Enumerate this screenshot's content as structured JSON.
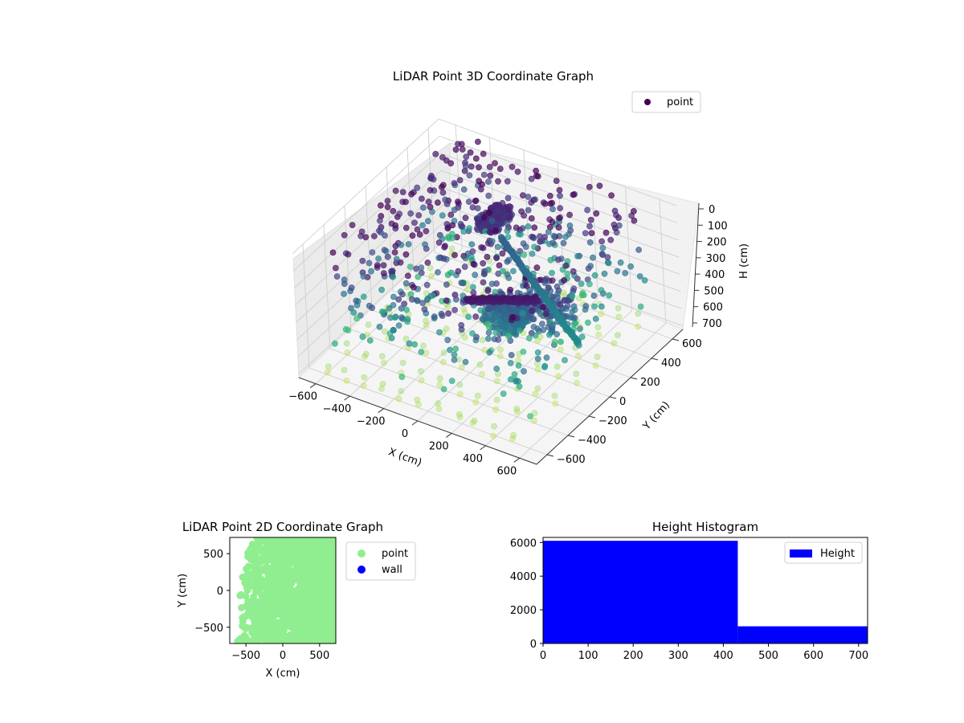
{
  "chart_data": [
    {
      "type": "scatter",
      "title": "LiDAR Point 3D Coordinate Graph",
      "projection": "3d",
      "xlabel": "X (cm)",
      "ylabel": "Y (cm)",
      "zlabel": "H (cm)",
      "xlim": [
        -700,
        700
      ],
      "ylim": [
        -700,
        700
      ],
      "zlim": [
        0,
        720
      ],
      "z_inverted": true,
      "x_ticks": [
        "−600",
        "−400",
        "−200",
        "0",
        "200",
        "400",
        "600"
      ],
      "y_ticks": [
        "−600",
        "−400",
        "−200",
        "0",
        "200",
        "400",
        "600"
      ],
      "z_ticks": [
        "0",
        "100",
        "200",
        "300",
        "400",
        "500",
        "600",
        "700"
      ],
      "grid": true,
      "legend": {
        "placement": "upper-right",
        "entries": [
          "point"
        ]
      },
      "series": [
        {
          "name": "point",
          "colormap": "viridis (colored by H)",
          "clusters": [
            {
              "x": [
                -150,
                -50
              ],
              "y": [
                150,
                350
              ],
              "h": [
                80,
                140
              ],
              "approx_count": 2500
            },
            {
              "x": [
                150,
                350
              ],
              "y": [
                -300,
                -150
              ],
              "h": [
                200,
                340
              ],
              "approx_count": 1800
            },
            {
              "x": [
                250,
                550
              ],
              "y": [
                -250,
                0
              ],
              "h": [
                150,
                300
              ],
              "approx_count": 1200
            },
            {
              "x": [
                -600,
                600
              ],
              "y": [
                -650,
                650
              ],
              "h": [
                0,
                720
              ],
              "approx_count": 600
            }
          ]
        }
      ]
    },
    {
      "type": "scatter",
      "title": "LiDAR Point 2D Coordinate Graph",
      "xlabel": "X (cm)",
      "ylabel": "Y (cm)",
      "xlim": [
        -720,
        720
      ],
      "ylim": [
        -720,
        720
      ],
      "x_ticks": [
        "−500",
        "0",
        "500"
      ],
      "y_ticks": [
        "−500",
        "0",
        "500"
      ],
      "legend": {
        "placement": "outside-right",
        "entries": [
          "point",
          "wall"
        ]
      },
      "series": [
        {
          "name": "point",
          "color": "#90ee90"
        },
        {
          "name": "wall",
          "color": "#0000ff",
          "points": []
        }
      ]
    },
    {
      "type": "bar",
      "title": "Height Histogram",
      "xlim": [
        0,
        720
      ],
      "ylim": [
        0,
        6300
      ],
      "x_ticks": [
        "0",
        "100",
        "200",
        "300",
        "400",
        "500",
        "600",
        "700"
      ],
      "y_ticks": [
        "0",
        "2000",
        "4000",
        "6000"
      ],
      "legend": {
        "placement": "upper-right",
        "entries": [
          "Height"
        ]
      },
      "series": [
        {
          "name": "Height",
          "color": "#0000ff",
          "bins": [
            {
              "from": 0,
              "to": 432,
              "count": 6100
            },
            {
              "from": 432,
              "to": 720,
              "count": 1020
            }
          ]
        }
      ]
    }
  ]
}
